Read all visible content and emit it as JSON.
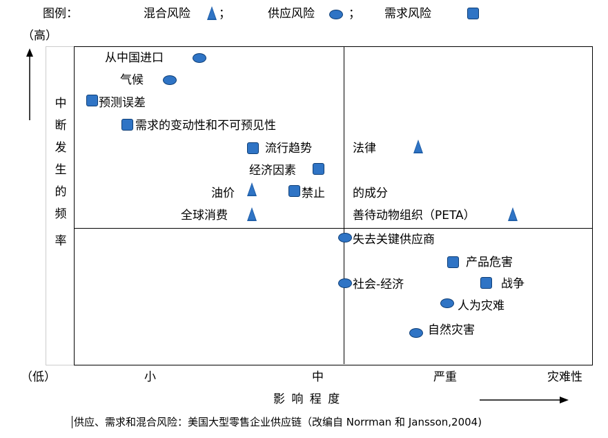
{
  "legend": {
    "title": "图例：",
    "mixed": "混合风险",
    "supply": "供应风险",
    "demand": "需求风险",
    "separator": "；"
  },
  "axes": {
    "y_high": "（高）",
    "y_low": "（低）",
    "y_title": [
      "中",
      "断",
      "发",
      "生",
      "的",
      "频",
      "率"
    ],
    "x_ticks": [
      "小",
      "中",
      "严重",
      "灾难性"
    ],
    "x_title": "影 响 程 度"
  },
  "items": {
    "china_import": "从中国进口",
    "climate": "气候",
    "forecast_error": "预测误差",
    "demand_variability": "需求的变动性和不可预见性",
    "trend": "流行趋势",
    "economic": "经济因素",
    "oil": "油价",
    "ban": "禁止",
    "global_consumption": "全球消费",
    "law": "法律",
    "component": "的成分",
    "peta": "善待动物组织（PETA）",
    "lose_supplier": "失去关键供应商",
    "product_harm": "产品危害",
    "socio_economic": "社会-经济",
    "war": "战争",
    "human_disaster": "人为灾难",
    "natural_disaster": "自然灾害"
  },
  "caption": "供应、需求和混合风险：美国大型零售企业供应链（改编自 Norrman 和 Jansson,2004)",
  "colors": {
    "marker": "#2f74c5",
    "marker_border": "#0d3d75"
  }
}
